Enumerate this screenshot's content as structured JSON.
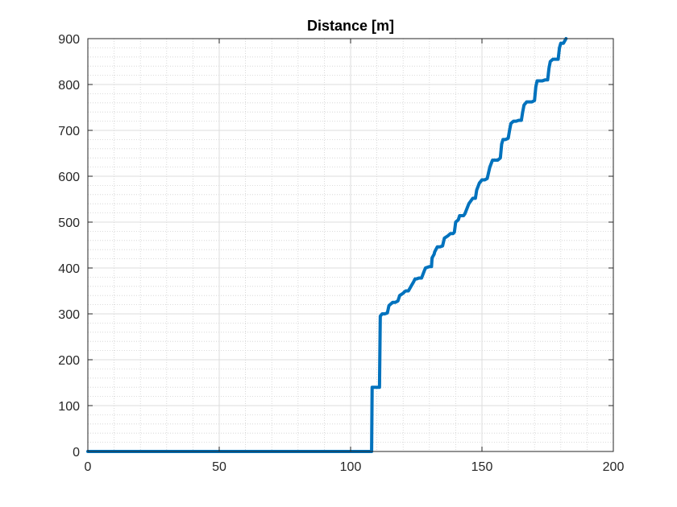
{
  "figure": {
    "background": "#ffffff"
  },
  "chart_data": {
    "type": "line",
    "title": "Distance [m]",
    "xlabel": "",
    "ylabel": "",
    "xlim": [
      0,
      200
    ],
    "ylim": [
      0,
      900
    ],
    "x_ticks": [
      0,
      50,
      100,
      150,
      200
    ],
    "y_ticks": [
      0,
      100,
      200,
      300,
      400,
      500,
      600,
      700,
      800,
      900
    ],
    "x_tick_labels": [
      "0",
      "50",
      "100",
      "150",
      "200"
    ],
    "y_tick_labels": [
      "0",
      "100",
      "200",
      "300",
      "400",
      "500",
      "600",
      "700",
      "800",
      "900"
    ],
    "grid": true,
    "minor_grid": true,
    "legend": "none",
    "series": [
      {
        "color": "#0072bd",
        "x": [
          0,
          107.5,
          108,
          108.2,
          111,
          111.3,
          112,
          113,
          114,
          114.6,
          116,
          117,
          118,
          118.7,
          120,
          120.5,
          121,
          122,
          123,
          124,
          124.5,
          125,
          126,
          127,
          128,
          128.5,
          130,
          130.8,
          131,
          131.8,
          132,
          133,
          134,
          135,
          135.7,
          137,
          138,
          139,
          139.5,
          140,
          141,
          141.5,
          143,
          143.5,
          145,
          146,
          146.5,
          147,
          147.5,
          148,
          149,
          150,
          151,
          152,
          153,
          154,
          155,
          156,
          157,
          157.5,
          158,
          159,
          160,
          160.5,
          161,
          162,
          163,
          164,
          165,
          165.5,
          166,
          167,
          168,
          169,
          170,
          170.5,
          171,
          172,
          173,
          174,
          175,
          175.5,
          176,
          177,
          178,
          179,
          179.5,
          180,
          181,
          181.5,
          182
        ],
        "y": [
          0,
          0,
          0,
          140,
          140,
          295,
          300,
          300,
          302,
          318,
          325,
          325,
          328,
          340,
          345,
          348,
          350,
          350,
          360,
          370,
          376,
          376,
          378,
          378,
          393,
          400,
          403,
          403,
          422,
          430,
          435,
          446,
          446,
          448,
          465,
          470,
          475,
          475,
          478,
          500,
          505,
          514,
          514,
          518,
          540,
          548,
          552,
          552,
          552,
          570,
          585,
          592,
          592,
          595,
          620,
          635,
          635,
          635,
          640,
          670,
          680,
          680,
          683,
          700,
          715,
          720,
          720,
          722,
          722,
          740,
          755,
          762,
          762,
          762,
          765,
          795,
          808,
          808,
          808,
          810,
          810,
          835,
          850,
          855,
          855,
          855,
          880,
          890,
          890,
          895,
          900
        ]
      }
    ]
  }
}
